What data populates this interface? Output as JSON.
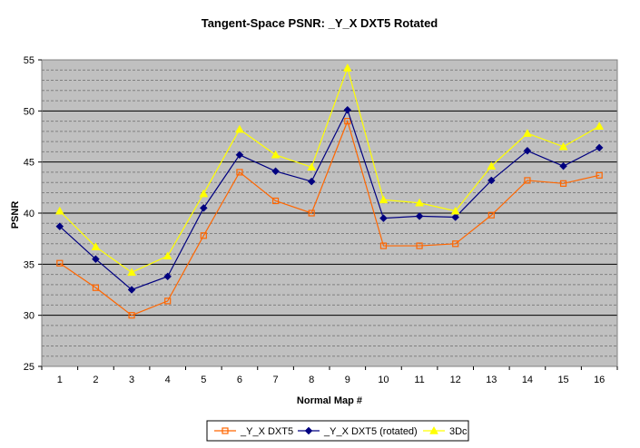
{
  "chart_data": {
    "type": "line",
    "title": "Tangent-Space PSNR: _Y_X DXT5 Rotated",
    "xlabel": "Normal Map #",
    "ylabel": "PSNR",
    "categories": [
      "1",
      "2",
      "3",
      "4",
      "5",
      "6",
      "7",
      "8",
      "9",
      "10",
      "11",
      "12",
      "13",
      "14",
      "15",
      "16"
    ],
    "ylim": [
      25,
      55
    ],
    "y_major_ticks": [
      25,
      30,
      35,
      40,
      45,
      50,
      55
    ],
    "y_minor_step": 1,
    "grid": true,
    "legend_position": "bottom",
    "colors": {
      "plot_background": "#c0c0c0",
      "major_grid": "#000000",
      "minor_grid": "#808080",
      "axis": "#808080"
    },
    "series": [
      {
        "name": "_Y_X DXT5",
        "color": "#ff6600",
        "marker": "square-open",
        "values": [
          35.1,
          32.7,
          30.0,
          31.4,
          37.8,
          44.0,
          41.2,
          40.0,
          49.0,
          36.8,
          36.8,
          37.0,
          39.8,
          43.2,
          42.9,
          43.7
        ]
      },
      {
        "name": "_Y_X DXT5 (rotated)",
        "color": "#000080",
        "marker": "diamond",
        "values": [
          38.7,
          35.5,
          32.5,
          33.8,
          40.5,
          45.7,
          44.1,
          43.1,
          50.1,
          39.5,
          39.7,
          39.6,
          43.2,
          46.1,
          44.6,
          46.4
        ]
      },
      {
        "name": "3Dc",
        "color": "#ffff00",
        "marker": "triangle",
        "values": [
          40.2,
          36.7,
          34.2,
          35.8,
          41.9,
          48.2,
          45.7,
          44.5,
          54.2,
          41.3,
          41.0,
          40.2,
          44.6,
          47.8,
          46.5,
          48.5
        ]
      }
    ]
  }
}
